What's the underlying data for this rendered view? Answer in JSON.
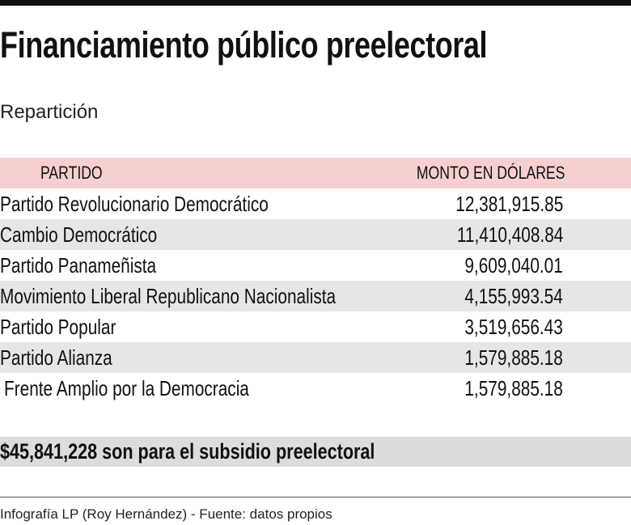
{
  "header": {
    "title": "Financiamiento público preelectoral",
    "subtitle": "Repartición"
  },
  "table": {
    "columns": [
      "PARTIDO",
      "MONTO EN DÓLARES"
    ],
    "rows": [
      [
        "Partido Revolucionario Democrático",
        "12,381,915.85"
      ],
      [
        "Cambio Democrático",
        "11,410,408.84"
      ],
      [
        "Partido Panameñista",
        "9,609,040.01"
      ],
      [
        "Movimiento Liberal Republicano Nacionalista",
        "4,155,993.54"
      ],
      [
        "Partido Popular",
        "3,519,656.43"
      ],
      [
        "Partido Alianza",
        "1,579,885.18"
      ],
      [
        "Frente Amplio por la Democracia",
        "1,579,885.18"
      ]
    ]
  },
  "summary": "$45,841,228 son para el subsidio preelectoral",
  "footer": {
    "source": "Infografía LP (Roy Hernández) - Fuente: datos propios"
  }
}
